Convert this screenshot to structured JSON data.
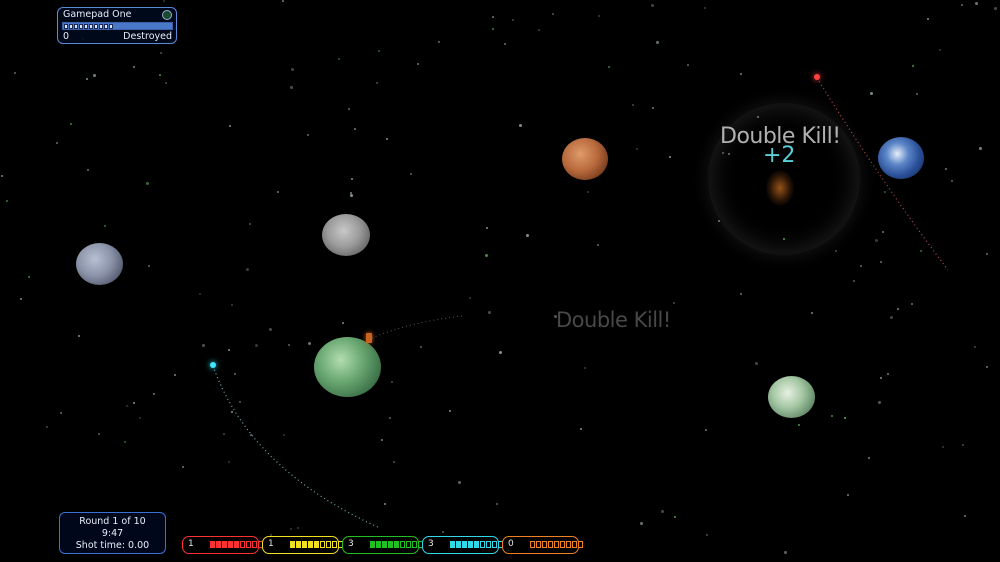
{
  "player_panel": {
    "name": "Gamepad One",
    "score": "0",
    "status": "Destroyed",
    "health_segments_filled": 10
  },
  "round_panel": {
    "round_label": "Round 1 of 10",
    "time": "9:47",
    "shot_time": "Shot time: 0.00"
  },
  "kill_feed": {
    "main_text": "Double Kill!",
    "score_popup": "+2",
    "faded_text": "Double Kill!"
  },
  "scoreboard": [
    {
      "player": "red",
      "color": "#ff3030",
      "score": "1",
      "pips_filled": 5,
      "pips_total": 9
    },
    {
      "player": "yellow",
      "color": "#f0e020",
      "score": "1",
      "pips_filled": 5,
      "pips_total": 9
    },
    {
      "player": "green",
      "color": "#20c020",
      "score": "3",
      "pips_filled": 5,
      "pips_total": 9
    },
    {
      "player": "cyan",
      "color": "#30d8e8",
      "score": "3",
      "pips_filled": 5,
      "pips_total": 9
    },
    {
      "player": "orange",
      "color": "#f08020",
      "score": "0",
      "pips_filled": 0,
      "pips_total": 9
    }
  ],
  "planets": [
    "mars",
    "earth",
    "moon",
    "grey",
    "green-big",
    "green-small"
  ]
}
